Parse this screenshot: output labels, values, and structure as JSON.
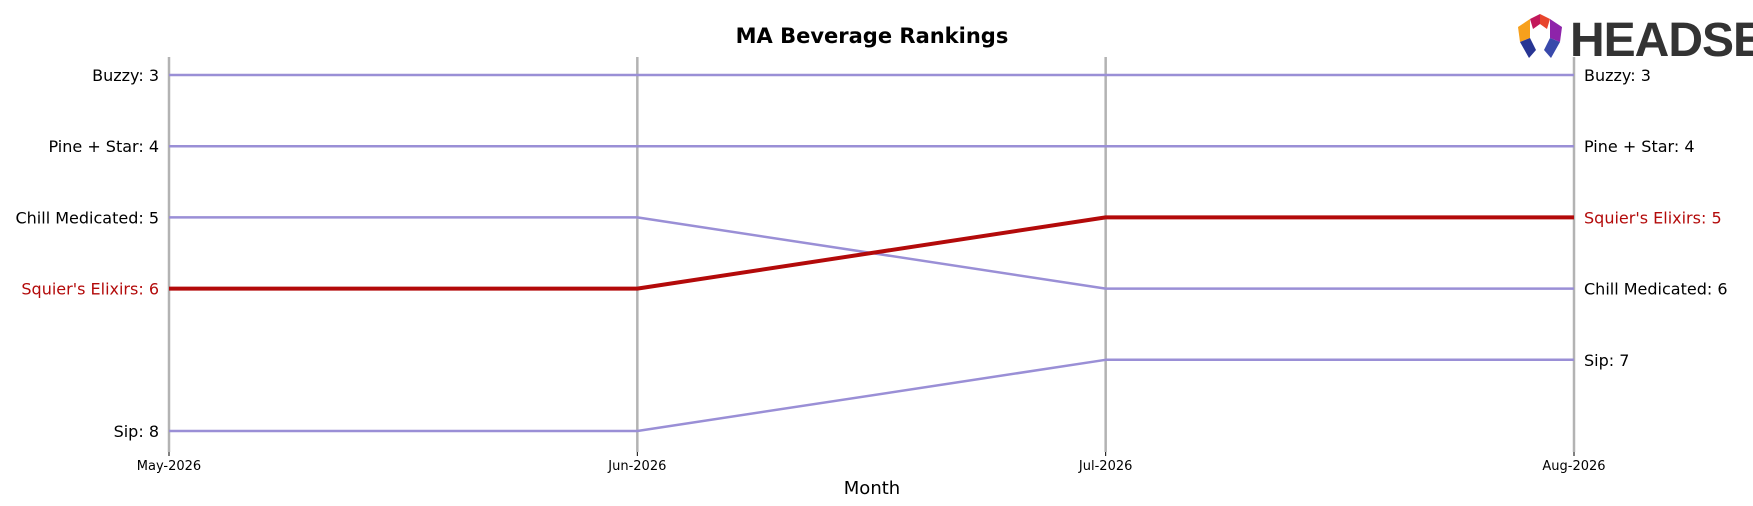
{
  "chart_data": {
    "type": "line",
    "title": "MA Beverage Rankings",
    "xlabel": "Month",
    "ylabel": "",
    "x": [
      "May-2026",
      "Jun-2026",
      "Jul-2026",
      "Aug-2026"
    ],
    "y_inverted": true,
    "ylim": [
      3,
      8
    ],
    "grid": false,
    "series": [
      {
        "name": "Buzzy",
        "values": [
          3,
          3,
          3,
          3
        ],
        "color": "#9a8fd6",
        "highlight": false
      },
      {
        "name": "Pine + Star",
        "values": [
          4,
          4,
          4,
          4
        ],
        "color": "#9a8fd6",
        "highlight": false
      },
      {
        "name": "Chill Medicated",
        "values": [
          5,
          5,
          6,
          6
        ],
        "color": "#9a8fd6",
        "highlight": false
      },
      {
        "name": "Squier's Elixirs",
        "values": [
          6,
          6,
          5,
          5
        ],
        "color": "#b30a0a",
        "highlight": true
      },
      {
        "name": "Sip",
        "values": [
          8,
          8,
          7,
          7
        ],
        "color": "#9a8fd6",
        "highlight": false
      }
    ],
    "vline_color": "#b3b3b3",
    "label_color_default": "#000000",
    "label_color_highlight": "#b30a0a"
  },
  "logo": {
    "text": "HEADSET",
    "colors": [
      "#e8452c",
      "#c2185b",
      "#f7a01c",
      "#8e24aa",
      "#283593",
      "#3949ab"
    ]
  }
}
